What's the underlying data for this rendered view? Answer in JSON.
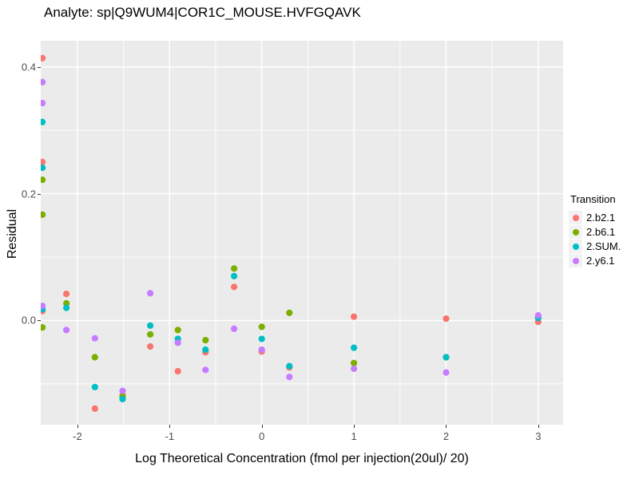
{
  "title": "Analyte: sp|Q9WUM4|COR1C_MOUSE.HVFGQAVK",
  "axes": {
    "x_title": "Log Theoretical Concentration (fmol per injection(20ul)/ 20)",
    "y_title": "Residual",
    "x_tick_labels": [
      "-2",
      "-1",
      "0",
      "1",
      "2",
      "3"
    ],
    "y_tick_labels": [
      "0.0",
      "0.2",
      "0.4"
    ]
  },
  "legend": {
    "title": "Transition",
    "items": [
      {
        "label": "2.b2.1",
        "color": "#F8766D"
      },
      {
        "label": "2.b6.1",
        "color": "#7CAE00"
      },
      {
        "label": "2.SUM.",
        "color": "#00BFC4"
      },
      {
        "label": "2.y6.1",
        "color": "#C77CFF"
      }
    ]
  },
  "colors": {
    "panel_background": "#EBEBEB",
    "grid": "#FFFFFF",
    "tick_text": "#4D4D4D",
    "legend_key_background": "#F2F2F2"
  },
  "chart_data": {
    "type": "scatter",
    "title": "Analyte: sp|Q9WUM4|COR1C_MOUSE.HVFGQAVK",
    "xlabel": "Log Theoretical Concentration (fmol per injection(20ul)/ 20)",
    "ylabel": "Residual",
    "xlim": [
      -2.398,
      3.27
    ],
    "ylim": [
      -0.1644,
      0.4414
    ],
    "x_major_ticks": [
      -2,
      -1,
      0,
      1,
      2,
      3
    ],
    "y_major_ticks": [
      0.0,
      0.2,
      0.4
    ],
    "x_minor_ticks": [
      -1.5,
      -0.5,
      0.5,
      1.5,
      2.5
    ],
    "y_minor_ticks": [
      -0.1,
      0.1,
      0.3
    ],
    "grid": true,
    "legend_title": "Transition",
    "legend_position": "right",
    "point_radius": 4.1,
    "series": [
      {
        "name": "2.b2.1",
        "color": "#F8766D",
        "points": [
          [
            -2.38,
            0.414
          ],
          [
            -2.38,
            0.25
          ],
          [
            -2.38,
            0.015
          ],
          [
            -2.12,
            0.042
          ],
          [
            -1.81,
            -0.139
          ],
          [
            -1.51,
            -0.118
          ],
          [
            -1.21,
            -0.041
          ],
          [
            -0.91,
            -0.08
          ],
          [
            -0.61,
            -0.05
          ],
          [
            -0.3,
            0.053
          ],
          [
            0.0,
            -0.049
          ],
          [
            0.3,
            -0.074
          ],
          [
            1.0,
            0.006
          ],
          [
            2.0,
            0.003
          ],
          [
            3.0,
            -0.002
          ]
        ]
      },
      {
        "name": "2.b6.1",
        "color": "#7CAE00",
        "points": [
          [
            -2.38,
            0.222
          ],
          [
            -2.38,
            0.167
          ],
          [
            -2.38,
            -0.011
          ],
          [
            -2.12,
            0.027
          ],
          [
            -1.81,
            -0.058
          ],
          [
            -1.51,
            -0.12
          ],
          [
            -1.21,
            -0.022
          ],
          [
            -0.91,
            -0.015
          ],
          [
            -0.61,
            -0.031
          ],
          [
            -0.3,
            0.082
          ],
          [
            0.0,
            -0.01
          ],
          [
            0.3,
            0.012
          ],
          [
            1.0,
            -0.067
          ],
          [
            2.0,
            -0.058
          ],
          [
            3.0,
            0.005
          ]
        ]
      },
      {
        "name": "2.SUM.",
        "color": "#00BFC4",
        "points": [
          [
            -2.38,
            0.313
          ],
          [
            -2.38,
            0.241
          ],
          [
            -2.38,
            0.018
          ],
          [
            -2.12,
            0.02
          ],
          [
            -1.81,
            -0.105
          ],
          [
            -1.51,
            -0.124
          ],
          [
            -1.21,
            -0.008
          ],
          [
            -0.91,
            -0.029
          ],
          [
            -0.61,
            -0.046
          ],
          [
            -0.3,
            0.07
          ],
          [
            0.0,
            -0.029
          ],
          [
            0.3,
            -0.072
          ],
          [
            1.0,
            -0.043
          ],
          [
            2.0,
            -0.058
          ],
          [
            3.0,
            0.004
          ]
        ]
      },
      {
        "name": "2.y6.1",
        "color": "#C77CFF",
        "points": [
          [
            -2.38,
            0.376
          ],
          [
            -2.38,
            0.343
          ],
          [
            -2.38,
            0.023
          ],
          [
            -2.12,
            -0.015
          ],
          [
            -1.81,
            -0.028
          ],
          [
            -1.51,
            -0.111
          ],
          [
            -1.21,
            0.043
          ],
          [
            -0.91,
            -0.035
          ],
          [
            -0.61,
            -0.078
          ],
          [
            -0.3,
            -0.013
          ],
          [
            0.0,
            -0.046
          ],
          [
            0.3,
            -0.089
          ],
          [
            1.0,
            -0.076
          ],
          [
            2.0,
            -0.082
          ],
          [
            3.0,
            0.008
          ]
        ]
      }
    ]
  }
}
